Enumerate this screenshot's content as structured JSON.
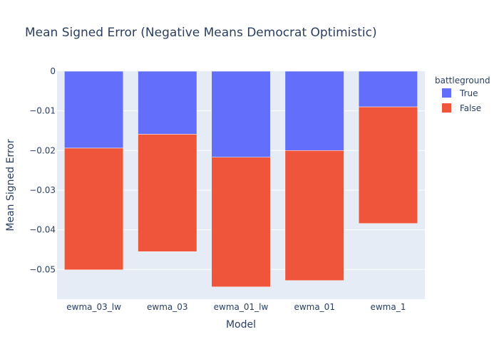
{
  "chart_data": {
    "type": "bar",
    "barmode": "stack",
    "title": "Mean Signed Error (Negative Means Democrat Optimistic)",
    "xlabel": "Model",
    "ylabel": "Mean Signed Error",
    "categories": [
      "ewma_03_lw",
      "ewma_03",
      "ewma_01_lw",
      "ewma_01",
      "ewma_1"
    ],
    "series": [
      {
        "name": "True",
        "color": "#636efa",
        "values": [
          -0.0194,
          -0.0159,
          -0.0217,
          -0.02,
          -0.009
        ]
      },
      {
        "name": "False",
        "color": "#ef553b",
        "values": [
          -0.0307,
          -0.0296,
          -0.0327,
          -0.0328,
          -0.0294
        ]
      }
    ],
    "ylim": [
      -0.0575,
      0
    ],
    "yticks": [
      0,
      -0.01,
      -0.02,
      -0.03,
      -0.04,
      -0.05
    ],
    "ytick_labels": [
      "0",
      "−0.01",
      "−0.02",
      "−0.03",
      "−0.04",
      "−0.05"
    ],
    "legend_title": "battleground",
    "legend_position": "top-right",
    "grid": true,
    "plot_background": "#e5ecf6"
  }
}
